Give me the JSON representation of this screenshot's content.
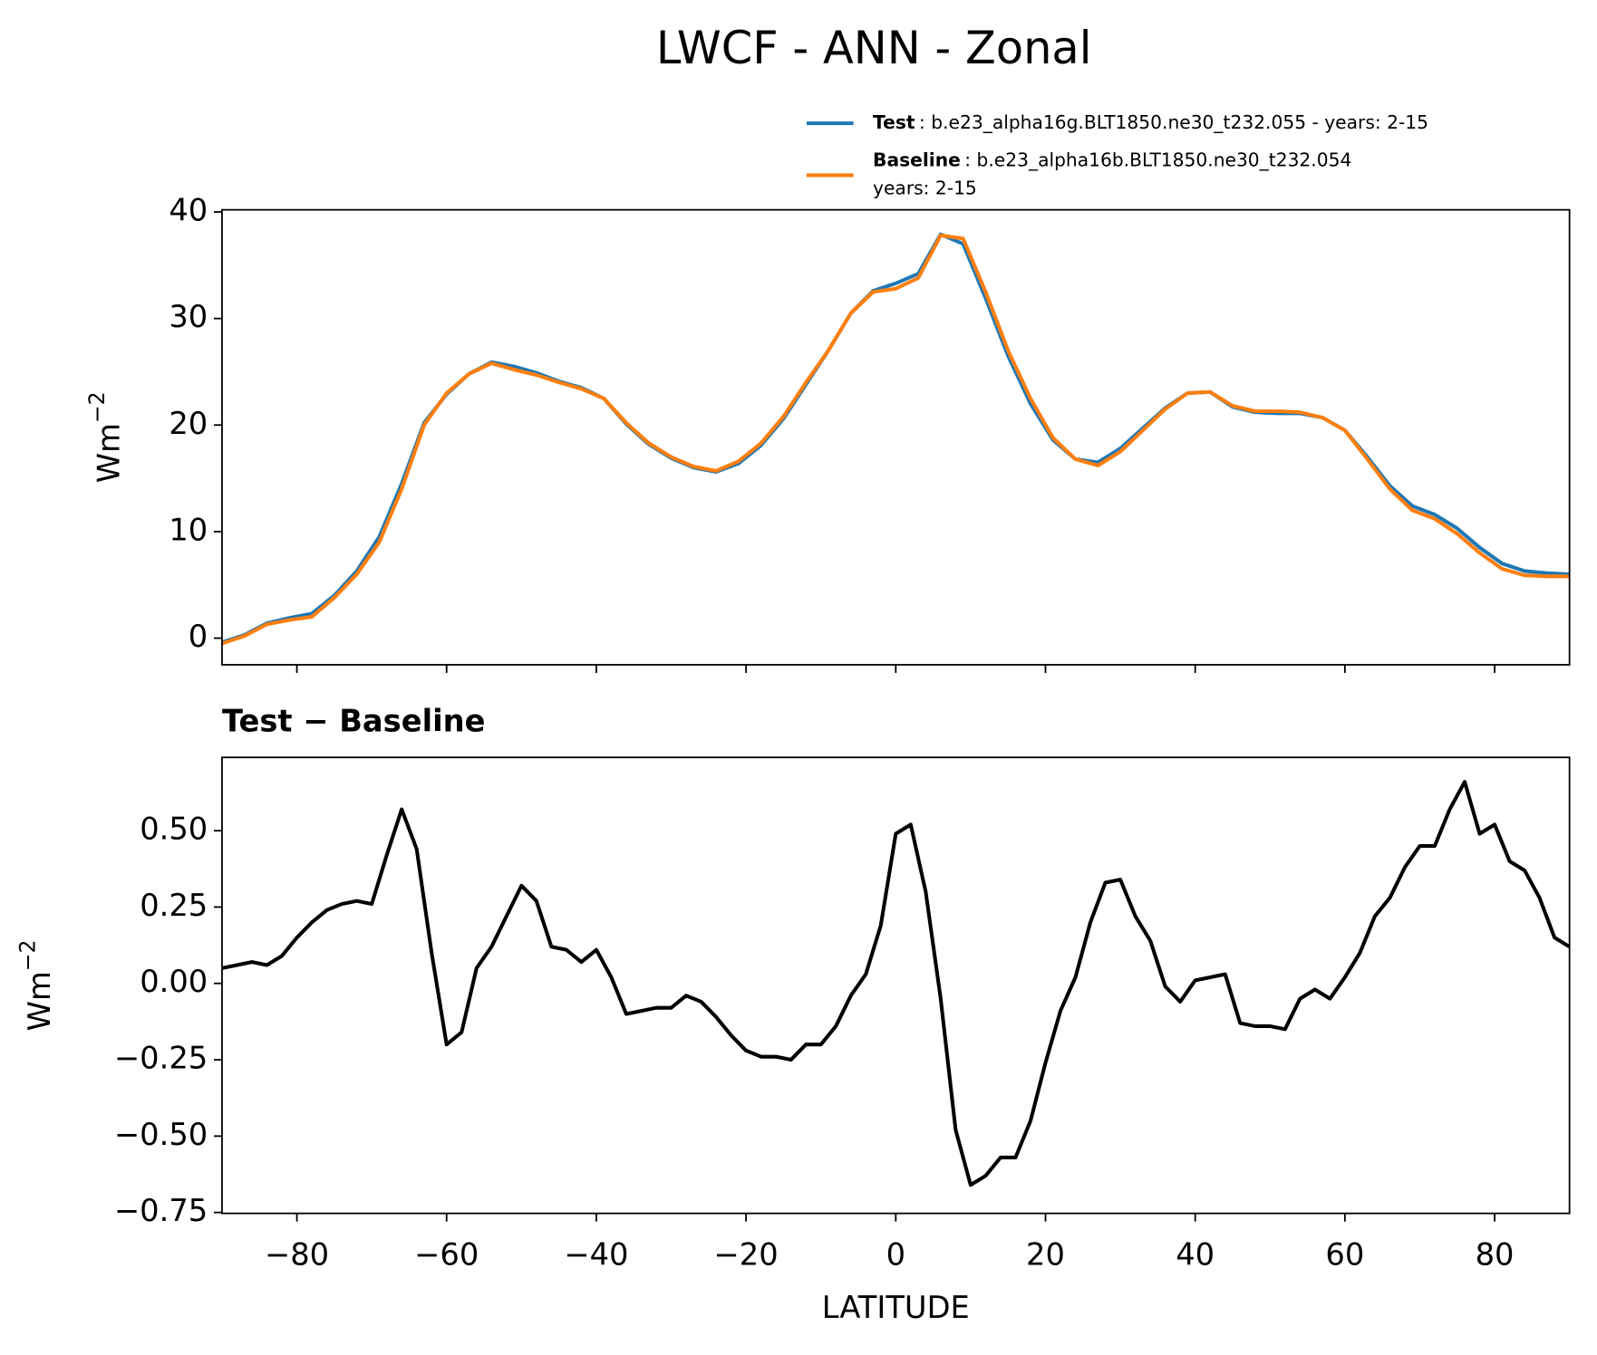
{
  "chart_data": [
    {
      "type": "line",
      "title": "LWCF - ANN - Zonal",
      "ylabel": "Wm",
      "ylabel_sup": "−2",
      "x": [
        -90,
        -87,
        -84,
        -81,
        -78,
        -75,
        -72,
        -69,
        -66,
        -63,
        -60,
        -57,
        -54,
        -51,
        -48,
        -45,
        -42,
        -39,
        -36,
        -33,
        -30,
        -27,
        -24,
        -21,
        -18,
        -15,
        -12,
        -9,
        -6,
        -3,
        0,
        3,
        6,
        9,
        12,
        15,
        18,
        21,
        24,
        27,
        30,
        33,
        36,
        39,
        42,
        45,
        48,
        51,
        54,
        57,
        60,
        63,
        66,
        69,
        72,
        75,
        78,
        81,
        84,
        87,
        90
      ],
      "series": [
        {
          "name": "Test",
          "legend_text": [
            ": b.e23_alpha16g.BLT1850.ne30_t232.055 - years: 2-15"
          ],
          "color": "#1f77b4",
          "values": [
            -0.4,
            0.3,
            1.4,
            1.9,
            2.3,
            4.0,
            6.3,
            9.5,
            14.5,
            20.2,
            22.9,
            24.8,
            25.9,
            25.5,
            24.9,
            24.1,
            23.5,
            22.5,
            20.1,
            18.2,
            16.9,
            16.0,
            15.6,
            16.4,
            18.1,
            20.6,
            23.8,
            27.0,
            30.5,
            32.6,
            33.3,
            34.2,
            37.9,
            37.0,
            31.9,
            26.5,
            22.0,
            18.6,
            16.8,
            16.5,
            17.8,
            19.7,
            21.6,
            23.0,
            23.1,
            21.7,
            21.2,
            21.1,
            21.1,
            20.7,
            19.5,
            17.0,
            14.3,
            12.4,
            11.6,
            10.3,
            8.5,
            7.0,
            6.3,
            6.1,
            6.0
          ]
        },
        {
          "name": "Baseline",
          "legend_text": [
            ": b.e23_alpha16b.BLT1850.ne30_t232.054",
            "years: 2-15"
          ],
          "color": "#ff7f0e",
          "values": [
            -0.5,
            0.2,
            1.3,
            1.7,
            2.0,
            3.8,
            6.0,
            9.0,
            14.0,
            20.0,
            23.0,
            24.8,
            25.8,
            25.2,
            24.7,
            24.0,
            23.4,
            22.5,
            20.2,
            18.3,
            17.0,
            16.1,
            15.7,
            16.6,
            18.3,
            20.8,
            24.0,
            27.0,
            30.5,
            32.5,
            32.8,
            33.8,
            37.8,
            37.5,
            32.5,
            27.0,
            22.5,
            18.8,
            16.8,
            16.2,
            17.5,
            19.5,
            21.5,
            23.0,
            23.1,
            21.8,
            21.3,
            21.3,
            21.2,
            20.7,
            19.5,
            16.8,
            14.0,
            12.0,
            11.2,
            9.8,
            8.0,
            6.5,
            5.9,
            5.8,
            5.8
          ]
        }
      ],
      "xlim": [
        -90,
        90
      ],
      "ylim": [
        -2.5,
        40.2
      ],
      "yticks": [
        0,
        10,
        20,
        30,
        40
      ]
    },
    {
      "type": "line",
      "title": "Test − Baseline",
      "ylabel": "Wm",
      "ylabel_sup": "−2",
      "xlabel": "LATITUDE",
      "x": [
        -90,
        -88,
        -86,
        -84,
        -82,
        -80,
        -78,
        -76,
        -74,
        -72,
        -70,
        -68,
        -66,
        -64,
        -62,
        -60,
        -58,
        -56,
        -54,
        -52,
        -50,
        -48,
        -46,
        -44,
        -42,
        -40,
        -38,
        -36,
        -34,
        -32,
        -30,
        -28,
        -26,
        -24,
        -22,
        -20,
        -18,
        -16,
        -14,
        -12,
        -10,
        -8,
        -6,
        -4,
        -2,
        0,
        2,
        4,
        6,
        8,
        10,
        12,
        14,
        16,
        18,
        20,
        22,
        24,
        26,
        28,
        30,
        32,
        34,
        36,
        38,
        40,
        42,
        44,
        46,
        48,
        50,
        52,
        54,
        56,
        58,
        60,
        62,
        64,
        66,
        68,
        70,
        72,
        74,
        76,
        78,
        80,
        82,
        84,
        86,
        88,
        90
      ],
      "series": [
        {
          "name": "Test − Baseline",
          "color": "#000000",
          "values": [
            0.05,
            0.06,
            0.07,
            0.06,
            0.09,
            0.15,
            0.2,
            0.24,
            0.26,
            0.27,
            0.26,
            0.42,
            0.57,
            0.44,
            0.1,
            -0.2,
            -0.16,
            0.05,
            0.12,
            0.22,
            0.32,
            0.27,
            0.12,
            0.11,
            0.07,
            0.11,
            0.02,
            -0.1,
            -0.09,
            -0.08,
            -0.08,
            -0.04,
            -0.06,
            -0.11,
            -0.17,
            -0.22,
            -0.24,
            -0.24,
            -0.25,
            -0.2,
            -0.2,
            -0.14,
            -0.04,
            0.03,
            0.19,
            0.49,
            0.52,
            0.3,
            -0.05,
            -0.48,
            -0.66,
            -0.63,
            -0.57,
            -0.57,
            -0.45,
            -0.26,
            -0.09,
            0.02,
            0.2,
            0.33,
            0.34,
            0.22,
            0.14,
            -0.01,
            -0.06,
            0.01,
            0.02,
            0.03,
            -0.13,
            -0.14,
            -0.14,
            -0.15,
            -0.05,
            -0.02,
            -0.05,
            0.02,
            0.1,
            0.22,
            0.28,
            0.38,
            0.45,
            0.45,
            0.57,
            0.66,
            0.49,
            0.52,
            0.4,
            0.37,
            0.28,
            0.15,
            0.12
          ]
        }
      ],
      "xlim": [
        -90,
        90
      ],
      "ylim": [
        -0.753,
        0.74
      ],
      "xticks": [
        {
          "value": -80,
          "label": "−80"
        },
        {
          "value": -60,
          "label": "−60"
        },
        {
          "value": -40,
          "label": "−40"
        },
        {
          "value": -20,
          "label": "−20"
        },
        0,
        20,
        40,
        60,
        80
      ],
      "yticks": [
        {
          "value": -0.75,
          "label": "−0.75"
        },
        {
          "value": -0.5,
          "label": "−0.50"
        },
        {
          "value": -0.25,
          "label": "−0.25"
        },
        {
          "value": 0,
          "label": "0.00"
        },
        {
          "value": 0.25,
          "label": "0.25"
        },
        {
          "value": 0.5,
          "label": "0.50"
        }
      ]
    }
  ]
}
